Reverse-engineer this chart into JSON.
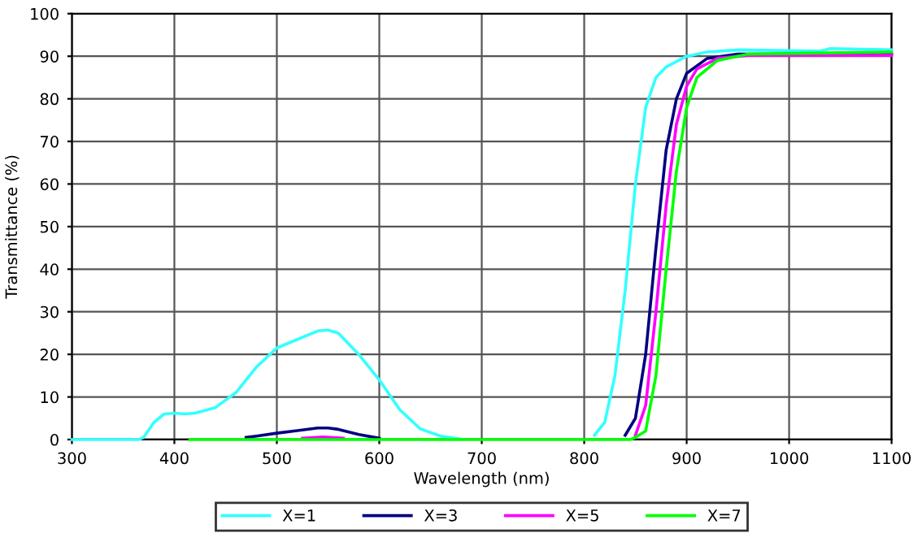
{
  "chart_data": {
    "type": "line",
    "xlabel": "Wavelength (nm)",
    "ylabel": "Transmittance (%)",
    "xlim": [
      300,
      1100
    ],
    "ylim": [
      0,
      100
    ],
    "xticks": [
      300,
      400,
      500,
      600,
      700,
      800,
      900,
      1000,
      1100
    ],
    "yticks": [
      0,
      10,
      20,
      30,
      40,
      50,
      60,
      70,
      80,
      90,
      100
    ],
    "grid": true,
    "legend": "bottom",
    "marker": "none",
    "line_style": "solid",
    "series": [
      {
        "name": "X=1",
        "color": "#33ffff",
        "x": [
          300,
          365,
          370,
          380,
          390,
          400,
          410,
          420,
          440,
          460,
          480,
          500,
          520,
          540,
          550,
          560,
          580,
          600,
          620,
          640,
          660,
          680,
          690,
          810,
          820,
          830,
          840,
          850,
          860,
          870,
          880,
          900,
          920,
          950,
          1000,
          1030,
          1040,
          1100
        ],
        "values": [
          0,
          0,
          0.5,
          4,
          6,
          6.2,
          6,
          6.2,
          7.5,
          11,
          17,
          21.5,
          23.5,
          25.5,
          25.7,
          25,
          20,
          14,
          7,
          2.5,
          0.8,
          0.1,
          null,
          1,
          4,
          15,
          35,
          60,
          78,
          85,
          87.5,
          90,
          91,
          91.5,
          91.3,
          91.2,
          91.8,
          91.5
        ]
      },
      {
        "name": "X=3",
        "color": "#000080",
        "x": [
          470,
          480,
          500,
          520,
          540,
          550,
          560,
          580,
          600,
          620,
          840,
          850,
          860,
          870,
          880,
          890,
          900,
          920,
          950,
          1000,
          1100
        ],
        "values": [
          0.5,
          0.8,
          1.5,
          2.1,
          2.7,
          2.7,
          2.4,
          1.2,
          0.3,
          null,
          1,
          5,
          20,
          45,
          68,
          80,
          86,
          89.5,
          90.5,
          90.5,
          90.5
        ]
      },
      {
        "name": "X=5",
        "color": "#ff00ff",
        "x": [
          525,
          545,
          565,
          600,
          850,
          860,
          870,
          880,
          890,
          900,
          910,
          930,
          960,
          1100
        ],
        "values": [
          0.3,
          0.6,
          0.3,
          null,
          1,
          8,
          30,
          55,
          74,
          83,
          87,
          89.5,
          90.2,
          90.2
        ]
      },
      {
        "name": "X=7",
        "color": "#00ff00",
        "x": [
          415,
          845,
          850,
          860,
          870,
          880,
          890,
          900,
          910,
          930,
          960,
          1100
        ],
        "values": [
          0,
          0,
          0.5,
          2,
          15,
          40,
          63,
          78,
          85,
          89,
          90.5,
          91
        ]
      }
    ]
  }
}
